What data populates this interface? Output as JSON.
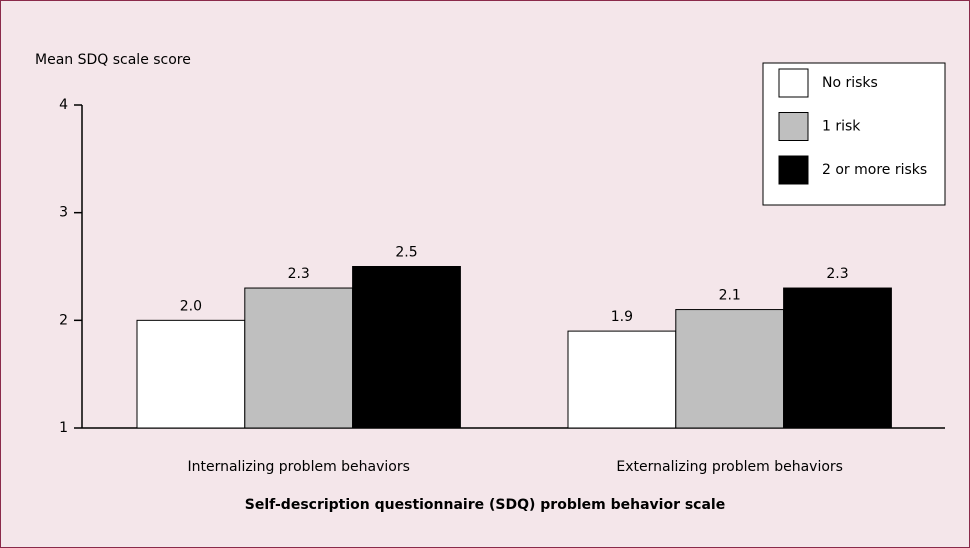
{
  "chart_data": {
    "type": "bar",
    "y_label": "Mean SDQ scale score",
    "x_label": "Self-description questionnaire (SDQ) problem behavior scale",
    "categories": [
      "Internalizing problem behaviors",
      "Externalizing problem behaviors"
    ],
    "series": [
      {
        "name": "No risks",
        "color": "#ffffff",
        "values": [
          2.0,
          1.9
        ],
        "value_labels": [
          "2.0",
          "1.9"
        ]
      },
      {
        "name": "1 risk",
        "color": "#bfbfbf",
        "values": [
          2.3,
          2.1
        ],
        "value_labels": [
          "2.3",
          "2.1"
        ]
      },
      {
        "name": "2 or more risks",
        "color": "#000000",
        "values": [
          2.5,
          2.3
        ],
        "value_labels": [
          "2.5",
          "2.3"
        ]
      }
    ],
    "ylim": [
      1,
      4
    ],
    "yticks": [
      1,
      2,
      3,
      4
    ],
    "legend": "top-right"
  }
}
